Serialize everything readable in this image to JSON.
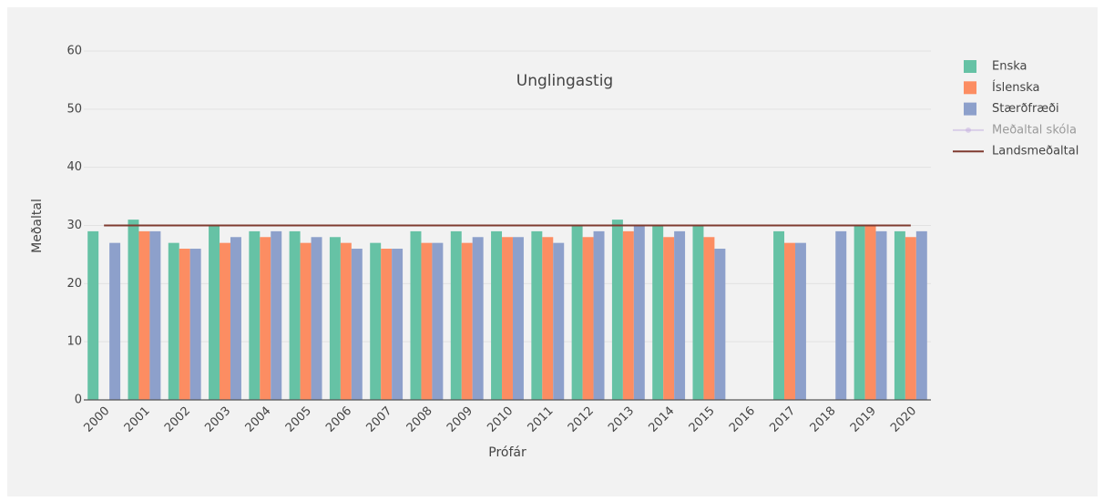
{
  "chart_data": {
    "type": "bar",
    "title": "Unglingastig",
    "xlabel": "Prófár",
    "ylabel": "Meðaltal",
    "categories": [
      "2000",
      "2001",
      "2002",
      "2003",
      "2004",
      "2005",
      "2006",
      "2007",
      "2008",
      "2009",
      "2010",
      "2011",
      "2012",
      "2013",
      "2014",
      "2015",
      "2016",
      "2017",
      "2018",
      "2019",
      "2020"
    ],
    "series": [
      {
        "name": "Enska",
        "color": "#66c2a5",
        "values": [
          29,
          31,
          27,
          30,
          29,
          29,
          28,
          27,
          29,
          29,
          29,
          29,
          30,
          31,
          30,
          30,
          null,
          29,
          null,
          30,
          29
        ]
      },
      {
        "name": "Íslenska",
        "color": "#fc8d62",
        "values": [
          null,
          29,
          26,
          27,
          28,
          27,
          27,
          26,
          27,
          27,
          28,
          28,
          28,
          29,
          28,
          28,
          null,
          27,
          null,
          30,
          28
        ]
      },
      {
        "name": "Stærðfræði",
        "color": "#8da0cb",
        "values": [
          27,
          29,
          26,
          28,
          29,
          28,
          26,
          26,
          27,
          28,
          28,
          27,
          29,
          30,
          29,
          26,
          null,
          27,
          29,
          29,
          29
        ]
      },
      {
        "name": "Meðaltal skóla",
        "color": "#c3aee0",
        "type": "line",
        "visible": false
      },
      {
        "name": "Landsmeðaltal",
        "color": "#7f3b30",
        "type": "line",
        "values": [
          30,
          30,
          30,
          30,
          30,
          30,
          30,
          30,
          30,
          30,
          30,
          30,
          30,
          30,
          30,
          30,
          30,
          30,
          30,
          30,
          30
        ]
      }
    ],
    "ylim": [
      0,
      60
    ],
    "yticks": [
      0,
      10,
      20,
      30,
      40,
      50,
      60
    ],
    "grid": true,
    "legend": "right"
  }
}
